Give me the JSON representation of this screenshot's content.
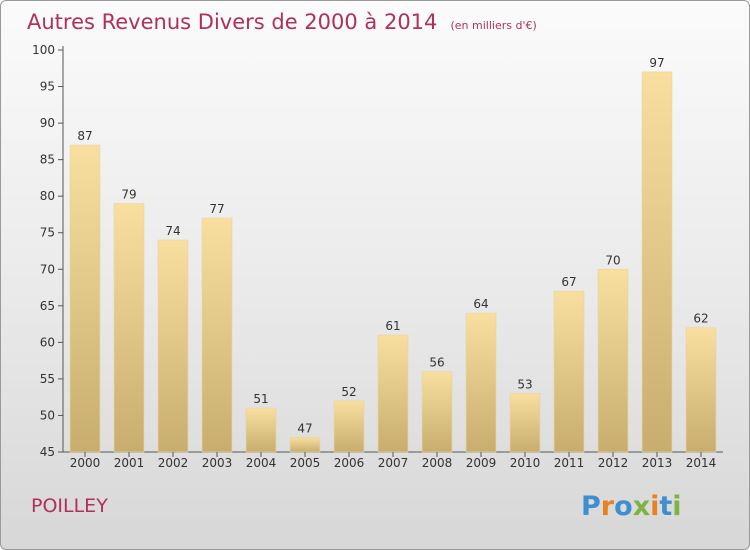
{
  "chart_data": {
    "type": "bar",
    "title": "Autres Revenus Divers de 2000 à 2014",
    "subtitle": "(en milliers d'€)",
    "categories": [
      "2000",
      "2001",
      "2002",
      "2003",
      "2004",
      "2005",
      "2006",
      "2007",
      "2008",
      "2009",
      "2010",
      "2011",
      "2012",
      "2013",
      "2014"
    ],
    "values": [
      87,
      79,
      74,
      77,
      51,
      47,
      52,
      61,
      56,
      64,
      53,
      67,
      70,
      97,
      62
    ],
    "ylim": [
      45,
      100
    ],
    "yticks": [
      45,
      50,
      55,
      60,
      65,
      70,
      75,
      80,
      85,
      90,
      95,
      100
    ],
    "xlabel": "",
    "ylabel": "",
    "grid": false,
    "legend": "none",
    "colors": {
      "bar_top": "#f8dfa0",
      "bar_bottom": "#c8ad6e",
      "title": "#b0305a",
      "text": "#333333"
    }
  },
  "footer": {
    "commune": "POILLEY",
    "logo": {
      "text": "Proxiti",
      "letters": [
        {
          "ch": "P",
          "color": "#3e8ed0"
        },
        {
          "ch": "r",
          "color": "#e8821e"
        },
        {
          "ch": "o",
          "color": "#3e8ed0"
        },
        {
          "ch": "x",
          "color": "#7cb342"
        },
        {
          "ch": "i",
          "color": "#e8821e"
        },
        {
          "ch": "t",
          "color": "#3e8ed0"
        },
        {
          "ch": "i",
          "color": "#7cb342"
        }
      ]
    }
  }
}
